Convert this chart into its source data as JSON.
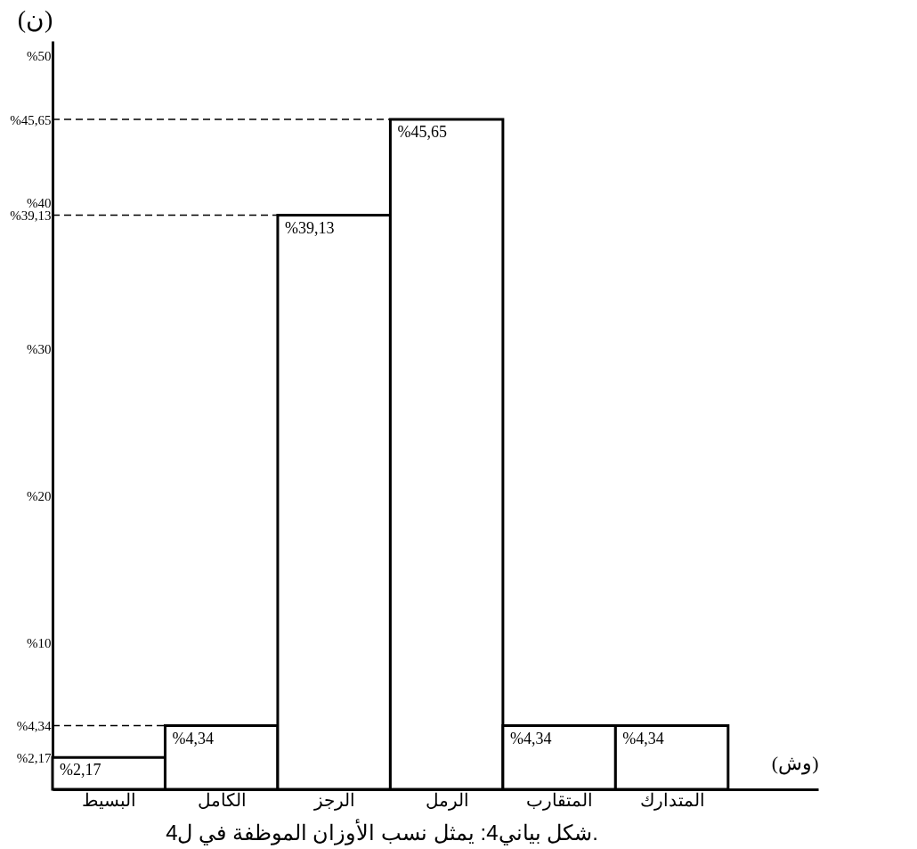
{
  "chart_data": {
    "type": "bar",
    "categories": [
      "البسيط",
      "الكامل",
      "الرجز",
      "الرمل",
      "المتقارب",
      "المتدارك"
    ],
    "values": [
      2.17,
      4.34,
      39.13,
      45.65,
      4.34,
      4.34
    ],
    "value_labels": [
      "%2,17",
      "%4,34",
      "%39,13",
      "%45,65",
      "%4,34",
      "%4,34"
    ],
    "color": "#ffffff",
    "xlabel": "(وش)",
    "ylabel": "(ن)",
    "ylim": [
      0,
      51
    ],
    "yticks": [
      {
        "value": 2.17,
        "label": "%2,17"
      },
      {
        "value": 4.34,
        "label": "%4,34"
      },
      {
        "value": 10,
        "label": "%10"
      },
      {
        "value": 20,
        "label": "%20"
      },
      {
        "value": 30,
        "label": "%30"
      },
      {
        "value": 39.13,
        "label": "%39,13"
      },
      {
        "value": 40,
        "label": "%40"
      },
      {
        "value": 45.65,
        "label": "%45,65"
      },
      {
        "value": 50,
        "label": "%50"
      }
    ],
    "ref_lines": [
      {
        "axis": "y",
        "value": 45.65,
        "label": null,
        "line_style": "dashed"
      },
      {
        "axis": "y",
        "value": 39.13,
        "label": null,
        "line_style": "dashed"
      },
      {
        "axis": "y",
        "value": 4.34,
        "label": null,
        "line_style": "dashed"
      }
    ],
    "grid": false,
    "annotations": [
      "شكل بياني4: يمثل نسب الأوزان الموظفة في ل4."
    ]
  }
}
